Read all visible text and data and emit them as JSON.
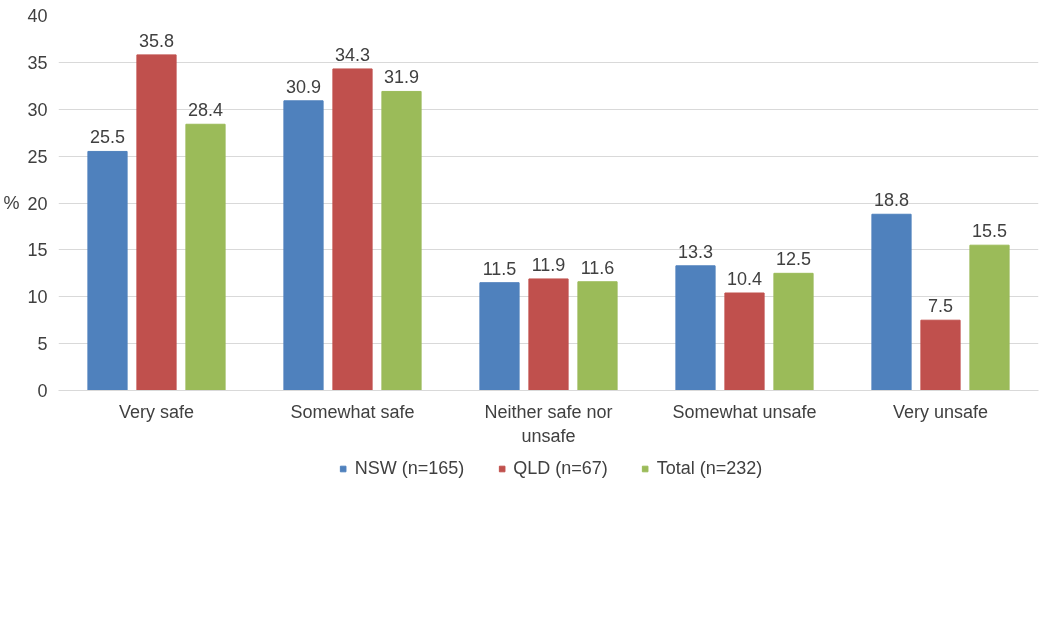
{
  "chart_data": {
    "type": "bar",
    "ylabel": "%",
    "categories": [
      "Very safe",
      "Somewhat safe",
      "Neither safe nor unsafe",
      "Somewhat unsafe",
      "Very unsafe"
    ],
    "series": [
      {
        "name": "NSW (n=165)",
        "color": "#4f81bd",
        "values": [
          25.5,
          30.9,
          11.5,
          13.3,
          18.8
        ]
      },
      {
        "name": "QLD (n=67)",
        "color": "#c0504d",
        "values": [
          35.8,
          34.3,
          11.9,
          10.4,
          7.5
        ]
      },
      {
        "name": "Total (n=232)",
        "color": "#9bbb59",
        "values": [
          28.4,
          31.9,
          11.6,
          12.5,
          15.5
        ]
      }
    ],
    "ylim": [
      0,
      40
    ],
    "yticks": [
      0,
      5,
      10,
      15,
      20,
      25,
      30,
      35,
      40
    ],
    "grid": "y",
    "legend": "bottom",
    "data_labels": true
  }
}
